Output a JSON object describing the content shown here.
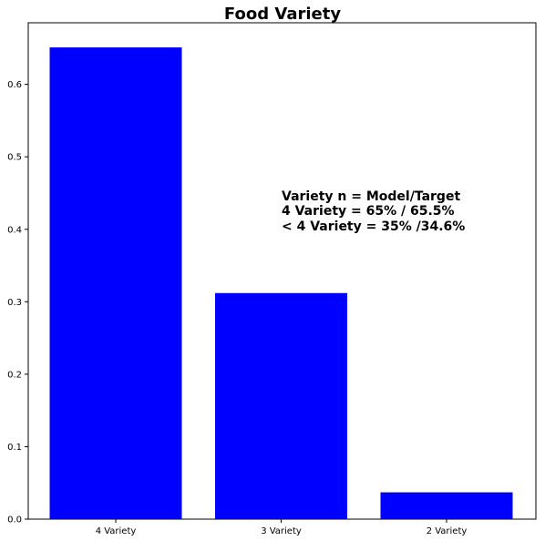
{
  "chart_data": {
    "type": "bar",
    "title": "Food Variety",
    "xlabel": "",
    "ylabel": "",
    "categories": [
      "4 Variety",
      "3 Variety",
      "2 Variety"
    ],
    "values": [
      0.651,
      0.312,
      0.037
    ],
    "ylim": [
      0,
      0.685
    ],
    "yticks": [
      0.0,
      0.1,
      0.2,
      0.3,
      0.4,
      0.5,
      0.6
    ],
    "ytick_labels": [
      "0.0",
      "0.1",
      "0.2",
      "0.3",
      "0.4",
      "0.5",
      "0.6"
    ],
    "bar_color": "#0000ff",
    "grid": false,
    "annotation": {
      "lines": [
        "Variety n = Model/Target",
        "4 Variety = 65% / 65.5%",
        "< 4 Variety = 35% /34.6%"
      ]
    }
  }
}
